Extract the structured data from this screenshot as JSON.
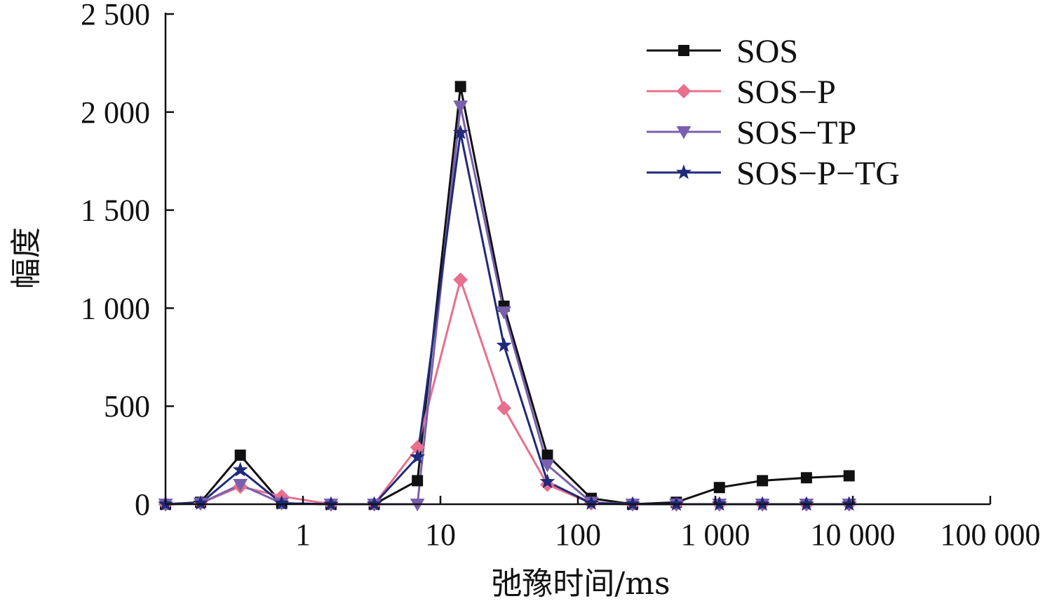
{
  "chart_data": {
    "type": "line",
    "xlabel": "弛豫时间/ms",
    "ylabel": "幅度",
    "x_scale": "log",
    "xlim": [
      0.1,
      100000
    ],
    "ylim": [
      0,
      2500
    ],
    "x_tick_values": [
      1,
      10,
      100,
      1000,
      10000,
      100000
    ],
    "x_tick_labels": [
      "1",
      "10",
      "100",
      "1 000",
      "10 000",
      "100 000"
    ],
    "y_tick_values": [
      0,
      500,
      1000,
      1500,
      2000,
      2500
    ],
    "y_tick_labels": [
      "0",
      "500",
      "1 000",
      "1 500",
      "2 000",
      "2 500"
    ],
    "grid": false,
    "legend_position": "top-right",
    "x": [
      0.1,
      0.18,
      0.35,
      0.7,
      1.6,
      3.3,
      6.8,
      14,
      29,
      60,
      125,
      250,
      520,
      1070,
      2200,
      4600,
      9400
    ],
    "series": [
      {
        "name": "SOS",
        "color": "#111111",
        "marker": "square",
        "values": [
          0,
          10,
          250,
          5,
          0,
          0,
          120,
          2130,
          1010,
          250,
          30,
          0,
          10,
          85,
          120,
          135,
          145
        ]
      },
      {
        "name": "SOS−P",
        "color": "#e86f8e",
        "marker": "diamond",
        "values": [
          0,
          5,
          90,
          40,
          0,
          0,
          290,
          1145,
          490,
          100,
          5,
          0,
          0,
          0,
          0,
          0,
          0
        ]
      },
      {
        "name": "SOS−TP",
        "color": "#7a5fae",
        "marker": "triangle-down",
        "values": [
          0,
          5,
          100,
          5,
          0,
          0,
          0,
          2030,
          980,
          200,
          10,
          0,
          0,
          0,
          0,
          0,
          0
        ]
      },
      {
        "name": "SOS−P−TG",
        "color": "#1f2a7a",
        "marker": "star",
        "values": [
          0,
          5,
          175,
          5,
          0,
          0,
          240,
          1895,
          810,
          115,
          5,
          0,
          0,
          0,
          0,
          0,
          0
        ]
      }
    ]
  }
}
